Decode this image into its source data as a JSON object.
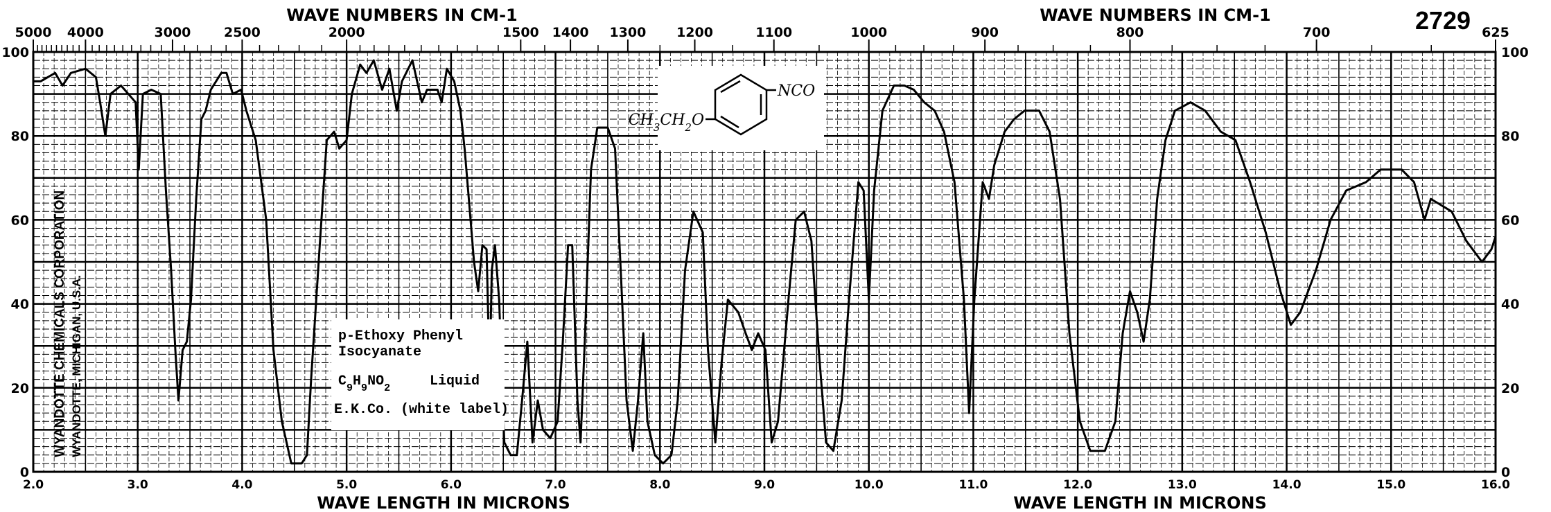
{
  "chart_data": {
    "type": "line",
    "title": "",
    "catalog_number": "2729",
    "top_axis_label": "WAVE NUMBERS IN CM-1",
    "bottom_axis_label": "WAVE LENGTH IN MICRONS",
    "xlim": [
      2.0,
      16.0
    ],
    "ylim": [
      0,
      100
    ],
    "grid": true,
    "x_ticks": [
      "2.0",
      "3.0",
      "4.0",
      "5.0",
      "6.0",
      "7.0",
      "8.0",
      "9.0",
      "10.0",
      "11.0",
      "12.0",
      "13.0",
      "14.0",
      "15.0",
      "16.0"
    ],
    "top_ticks": [
      "5000",
      "4000",
      "3000",
      "2500",
      "2000",
      "1500",
      "1400",
      "1300",
      "1200",
      "1100",
      "1000",
      "900",
      "800",
      "700",
      "625"
    ],
    "y_ticks": [
      "0",
      "20",
      "40",
      "60",
      "80",
      "100"
    ],
    "series": [
      {
        "x_microns": [
          2.0,
          2.07,
          2.21,
          2.28,
          2.36,
          2.5,
          2.6,
          2.64,
          2.69,
          2.74,
          2.84,
          2.98,
          3.01,
          3.05,
          3.13,
          3.22,
          3.27,
          3.32,
          3.36,
          3.39,
          3.43,
          3.47,
          3.51,
          3.56,
          3.61,
          3.65,
          3.7,
          3.8,
          3.85,
          3.91,
          3.99,
          4.04,
          4.13,
          4.23,
          4.3,
          4.38,
          4.47,
          4.57,
          4.62,
          4.66,
          4.74,
          4.81,
          4.88,
          4.93,
          5.0,
          5.05,
          5.13,
          5.19,
          5.26,
          5.34,
          5.41,
          5.48,
          5.53,
          5.63,
          5.72,
          5.77,
          5.87,
          5.91,
          5.96,
          6.03,
          6.09,
          6.13,
          6.17,
          6.22,
          6.26,
          6.3,
          6.34,
          6.37,
          6.39,
          6.42,
          6.46,
          6.51,
          6.57,
          6.63,
          6.68,
          6.73,
          6.78,
          6.83,
          6.88,
          6.95,
          7.02,
          7.07,
          7.12,
          7.16,
          7.21,
          7.24,
          7.28,
          7.34,
          7.4,
          7.5,
          7.57,
          7.63,
          7.68,
          7.74,
          7.79,
          7.84,
          7.88,
          7.95,
          8.03,
          8.11,
          8.17,
          8.24,
          8.32,
          8.41,
          8.46,
          8.53,
          8.59,
          8.65,
          8.75,
          8.82,
          8.88,
          8.94,
          9.01,
          9.07,
          9.13,
          9.23,
          9.3,
          9.38,
          9.45,
          9.52,
          9.59,
          9.66,
          9.74,
          9.81,
          9.9,
          9.95,
          10.0,
          10.05,
          10.13,
          10.24,
          10.34,
          10.43,
          10.53,
          10.63,
          10.72,
          10.82,
          10.91,
          10.96,
          11.01,
          11.09,
          11.15,
          11.2,
          11.3,
          11.39,
          11.49,
          11.63,
          11.73,
          11.83,
          11.92,
          12.02,
          12.12,
          12.26,
          12.36,
          12.43,
          12.5,
          12.57,
          12.63,
          12.69,
          12.76,
          12.84,
          12.93,
          13.08,
          13.22,
          13.37,
          13.51,
          13.65,
          13.8,
          13.94,
          14.04,
          14.13,
          14.28,
          14.42,
          14.57,
          14.76,
          14.9,
          15.1,
          15.22,
          15.32,
          15.38,
          15.58,
          15.72,
          15.87,
          15.96,
          16.0
        ],
        "transmittance": [
          93,
          93,
          95,
          92,
          95,
          96,
          94,
          88,
          80,
          90,
          92,
          88,
          72,
          90,
          91,
          90,
          67,
          48,
          29,
          17,
          29,
          31,
          41,
          65,
          84,
          86,
          91,
          95,
          95,
          90,
          91,
          86,
          79,
          60,
          29,
          12,
          2,
          2,
          4,
          22,
          53,
          79,
          81,
          77,
          79,
          90,
          97,
          95,
          98,
          91,
          96,
          86,
          93,
          98,
          88,
          91,
          91,
          88,
          96,
          93,
          86,
          77,
          65,
          50,
          43,
          54,
          53,
          22,
          48,
          54,
          41,
          7,
          4,
          4,
          17,
          31,
          7,
          17,
          10,
          8,
          12,
          31,
          54,
          54,
          17,
          7,
          31,
          72,
          82,
          82,
          77,
          45,
          17,
          5,
          17,
          33,
          12,
          4,
          2,
          4,
          17,
          48,
          62,
          57,
          29,
          7,
          26,
          41,
          38,
          33,
          29,
          33,
          29,
          7,
          12,
          41,
          60,
          62,
          55,
          29,
          7,
          5,
          17,
          41,
          69,
          67,
          41,
          67,
          86,
          92,
          92,
          91,
          88,
          86,
          81,
          69,
          41,
          14,
          41,
          69,
          65,
          73,
          81,
          84,
          86,
          86,
          81,
          65,
          33,
          12,
          5,
          5,
          12,
          33,
          43,
          38,
          31,
          41,
          65,
          79,
          86,
          88,
          86,
          81,
          79,
          69,
          57,
          43,
          35,
          38,
          48,
          60,
          67,
          69,
          72,
          72,
          69,
          60,
          65,
          62,
          55,
          50,
          53,
          56
        ]
      }
    ]
  },
  "sample_label": {
    "line1": "p-Ethoxy Phenyl",
    "line2": "Isocyanate",
    "formula": "C9H9NO2",
    "state": "Liquid",
    "source": "E.K.Co. (white label)"
  },
  "structure": {
    "substituent_top": "NCO",
    "substituent_left": "CH3CH2O"
  },
  "stamp": {
    "line1": "WYANDOTTE CHEMICALS CORPORATION",
    "line2": "WYANDOTTE, MICHIGAN, U.S.A."
  },
  "colors": {
    "ink": "#000000",
    "paper": "#ffffff"
  }
}
